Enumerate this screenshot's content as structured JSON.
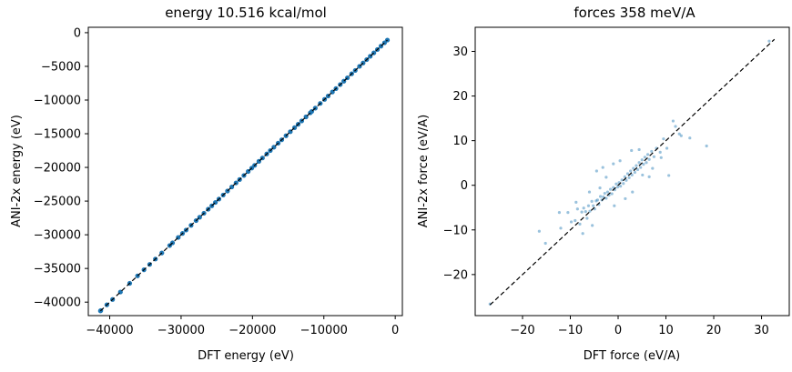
{
  "chart_data": [
    {
      "type": "scatter",
      "title": "energy  10.516 kcal/mol",
      "xlabel": "DFT energy (eV)",
      "ylabel": "ANI-2x energy (eV)",
      "xlim": [
        -43000,
        1000
      ],
      "ylim": [
        -42000,
        800
      ],
      "xticks": [
        -40000,
        -30000,
        -20000,
        -10000,
        0
      ],
      "xticklabels": [
        "−40000",
        "−30000",
        "−20000",
        "−10000",
        "0"
      ],
      "yticks": [
        0,
        -5000,
        -10000,
        -15000,
        -20000,
        -25000,
        -30000,
        -35000,
        -40000
      ],
      "yticklabels": [
        "0",
        "−5000",
        "−10000",
        "−15000",
        "−20000",
        "−25000",
        "−30000",
        "−35000",
        "−40000"
      ],
      "point_color": "#1f77b4",
      "reference_line": {
        "from": [
          -41300,
          -41300
        ],
        "to": [
          -1100,
          -1100
        ],
        "style": "dashed",
        "color": "#000000"
      },
      "points": [
        [
          -41300,
          -41300
        ],
        [
          -41250,
          -41255
        ],
        [
          -40400,
          -40400
        ],
        [
          -39600,
          -39602
        ],
        [
          -38500,
          -38500
        ],
        [
          -37200,
          -37205
        ],
        [
          -36100,
          -36100
        ],
        [
          -35200,
          -35198
        ],
        [
          -34400,
          -34400
        ],
        [
          -33600,
          -33604
        ],
        [
          -32700,
          -32700
        ],
        [
          -31600,
          -31600
        ],
        [
          -31200,
          -31203
        ],
        [
          -30400,
          -30400
        ],
        [
          -29800,
          -29800
        ],
        [
          -29300,
          -29301
        ],
        [
          -28600,
          -28600
        ],
        [
          -27900,
          -27900
        ],
        [
          -27400,
          -27404
        ],
        [
          -26800,
          -26800
        ],
        [
          -26200,
          -26200
        ],
        [
          -25700,
          -25702
        ],
        [
          -25200,
          -25200
        ],
        [
          -24700,
          -24700
        ],
        [
          -24100,
          -24100
        ],
        [
          -23500,
          -23503
        ],
        [
          -22900,
          -22900
        ],
        [
          -22300,
          -22300
        ],
        [
          -21800,
          -21801
        ],
        [
          -21200,
          -21200
        ],
        [
          -20600,
          -20600
        ],
        [
          -20100,
          -20102
        ],
        [
          -19700,
          -19700
        ],
        [
          -19100,
          -19100
        ],
        [
          -18600,
          -18600
        ],
        [
          -18000,
          -18003
        ],
        [
          -17500,
          -17500
        ],
        [
          -17000,
          -17000
        ],
        [
          -16400,
          -16401
        ],
        [
          -15900,
          -15900
        ],
        [
          -15300,
          -15300
        ],
        [
          -14700,
          -14704
        ],
        [
          -14100,
          -14100
        ],
        [
          -13600,
          -13600
        ],
        [
          -13100,
          -13102
        ],
        [
          -12500,
          -12500
        ],
        [
          -11900,
          -11900
        ],
        [
          -11700,
          -11700
        ],
        [
          -11200,
          -11203
        ],
        [
          -10500,
          -10500
        ],
        [
          -9900,
          -9900
        ],
        [
          -9400,
          -9401
        ],
        [
          -8800,
          -8800
        ],
        [
          -8300,
          -8300
        ],
        [
          -7700,
          -7702
        ],
        [
          -7200,
          -7200
        ],
        [
          -6700,
          -6700
        ],
        [
          -6100,
          -6100
        ],
        [
          -5600,
          -5603
        ],
        [
          -5000,
          -5000
        ],
        [
          -4500,
          -4500
        ],
        [
          -4000,
          -4001
        ],
        [
          -3500,
          -3500
        ],
        [
          -3000,
          -3000
        ],
        [
          -2500,
          -2502
        ],
        [
          -2000,
          -2000
        ],
        [
          -1500,
          -1500
        ],
        [
          -1100,
          -1100
        ]
      ]
    },
    {
      "type": "scatter",
      "title": "forces  358 meV/A",
      "xlabel": "DFT force (eV/A)",
      "ylabel": "ANI-2x force (eV/A)",
      "xlim": [
        -29.9,
        35.8
      ],
      "ylim": [
        -29.2,
        35.4
      ],
      "xticks": [
        -20,
        -10,
        0,
        10,
        20,
        30
      ],
      "xticklabels": [
        "−20",
        "−10",
        "0",
        "10",
        "20",
        "30"
      ],
      "yticks": [
        30,
        20,
        10,
        0,
        -10,
        -20
      ],
      "yticklabels": [
        "30",
        "20",
        "10",
        "0",
        "−10",
        "−20"
      ],
      "point_color": "#1f77b4",
      "reference_line": {
        "from": [
          -26.8,
          -26.8
        ],
        "to": [
          32.7,
          32.7
        ],
        "style": "dashed",
        "color": "#000000"
      },
      "points": [
        [
          -26.8,
          -26.6
        ],
        [
          31.6,
          32.3
        ],
        [
          -16.5,
          -10.3
        ],
        [
          -15.2,
          -13.0
        ],
        [
          -12.0,
          -9.6
        ],
        [
          -10.5,
          -6.1
        ],
        [
          -9.8,
          -8.2
        ],
        [
          -9.0,
          -7.9
        ],
        [
          -8.5,
          -5.3
        ],
        [
          -8.0,
          -8.7
        ],
        [
          -7.6,
          -6.0
        ],
        [
          -7.2,
          -5.1
        ],
        [
          -6.8,
          -5.9
        ],
        [
          -6.5,
          -7.4
        ],
        [
          -6.2,
          -4.6
        ],
        [
          -5.9,
          -5.8
        ],
        [
          -5.5,
          -3.6
        ],
        [
          -5.2,
          -4.6
        ],
        [
          -4.9,
          -5.3
        ],
        [
          -4.6,
          -3.5
        ],
        [
          -4.3,
          -3.3
        ],
        [
          -4.0,
          -4.3
        ],
        [
          -3.7,
          -2.5
        ],
        [
          -3.4,
          -3.3
        ],
        [
          -3.1,
          -2.6
        ],
        [
          -2.8,
          -1.8
        ],
        [
          -2.5,
          -2.9
        ],
        [
          -2.2,
          -1.5
        ],
        [
          -1.9,
          -2.2
        ],
        [
          -1.6,
          -0.9
        ],
        [
          -1.3,
          -1.9
        ],
        [
          -1.0,
          -0.5
        ],
        [
          -0.7,
          -1.0
        ],
        [
          -0.4,
          0.3
        ],
        [
          -0.1,
          -0.4
        ],
        [
          0.2,
          0.6
        ],
        [
          0.5,
          -0.2
        ],
        [
          0.8,
          1.2
        ],
        [
          1.1,
          0.4
        ],
        [
          1.4,
          1.9
        ],
        [
          1.7,
          1.1
        ],
        [
          2.0,
          2.6
        ],
        [
          2.3,
          1.7
        ],
        [
          2.6,
          3.2
        ],
        [
          2.9,
          2.3
        ],
        [
          3.2,
          3.8
        ],
        [
          3.5,
          2.9
        ],
        [
          3.8,
          4.4
        ],
        [
          4.1,
          3.5
        ],
        [
          4.4,
          5.1
        ],
        [
          4.7,
          4.0
        ],
        [
          5.0,
          5.7
        ],
        [
          5.3,
          4.7
        ],
        [
          5.6,
          6.3
        ],
        [
          5.9,
          5.1
        ],
        [
          6.2,
          6.9
        ],
        [
          6.5,
          5.8
        ],
        [
          7.0,
          7.6
        ],
        [
          7.5,
          6.4
        ],
        [
          8.0,
          8.3
        ],
        [
          8.8,
          7.4
        ],
        [
          9.5,
          10.4
        ],
        [
          10.2,
          8.3
        ],
        [
          11.5,
          14.4
        ],
        [
          12.0,
          13.2
        ],
        [
          13.2,
          11.1
        ],
        [
          15.0,
          10.6
        ],
        [
          18.5,
          8.8
        ],
        [
          10.6,
          2.2
        ],
        [
          12.8,
          11.5
        ],
        [
          -12.3,
          -6.1
        ],
        [
          -4.5,
          3.2
        ],
        [
          -3.2,
          4.0
        ],
        [
          1.5,
          -3.0
        ],
        [
          3.0,
          -1.5
        ],
        [
          -2.5,
          1.8
        ],
        [
          -1.0,
          4.8
        ],
        [
          6.5,
          1.9
        ],
        [
          2.8,
          7.8
        ],
        [
          -6.0,
          -1.5
        ],
        [
          0.4,
          5.5
        ],
        [
          5.1,
          2.3
        ],
        [
          -3.8,
          -0.6
        ],
        [
          -0.8,
          -4.6
        ],
        [
          4.4,
          8.0
        ],
        [
          7.2,
          3.8
        ],
        [
          -5.4,
          -9.0
        ],
        [
          -8.8,
          -3.8
        ],
        [
          9.0,
          6.2
        ],
        [
          -7.4,
          -10.8
        ]
      ]
    }
  ]
}
